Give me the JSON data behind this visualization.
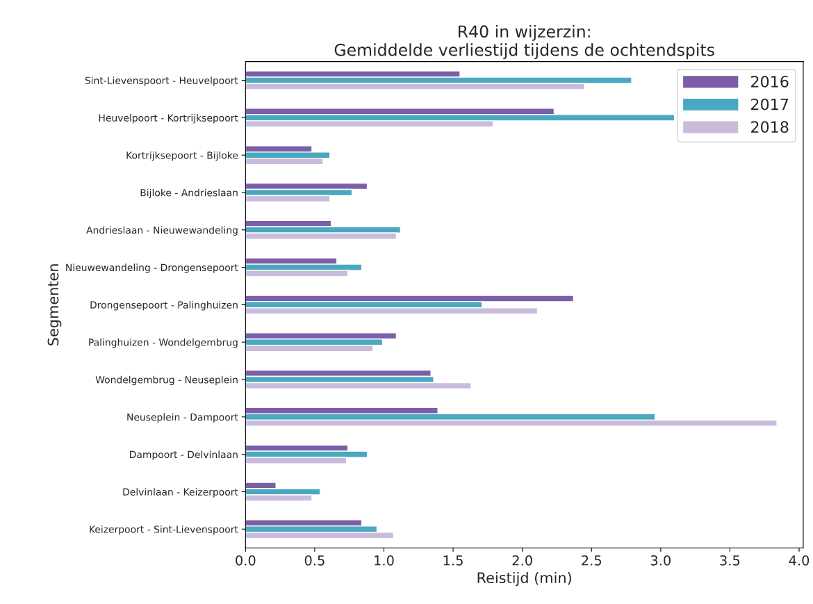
{
  "chart_data": {
    "type": "bar",
    "orientation": "horizontal",
    "title": "R40 in wijzerzin:\nGemiddelde verliestijd tijdens de ochtendspits",
    "xlabel": "Reistijd (min)",
    "ylabel": "Segmenten",
    "categories": [
      "Sint-Lievenspoort - Heuvelpoort",
      "Heuvelpoort - Kortrijksepoort",
      "Kortrijksepoort - Bijloke",
      "Bijloke - Andrieslaan",
      "Andrieslaan - Nieuwewandeling",
      "Nieuwewandeling - Drongensepoort",
      "Drongensepoort - Palinghuizen",
      "Palinghuizen - Wondelgembrug",
      "Wondelgembrug - Neuseplein",
      "Neuseplein - Dampoort",
      "Dampoort - Delvinlaan",
      "Delvinlaan - Keizerpoort",
      "Keizerpoort - Sint-Lievenspoort"
    ],
    "series": [
      {
        "name": "2016",
        "color": "#7b5ea7",
        "values": [
          1.55,
          2.23,
          0.48,
          0.88,
          0.62,
          0.66,
          2.37,
          1.09,
          1.34,
          1.39,
          0.74,
          0.22,
          0.84
        ]
      },
      {
        "name": "2017",
        "color": "#4aa8c0",
        "values": [
          2.79,
          3.1,
          0.61,
          0.77,
          1.12,
          0.84,
          1.71,
          0.99,
          1.36,
          2.96,
          0.88,
          0.54,
          0.95
        ]
      },
      {
        "name": "2018",
        "color": "#c9bcdb",
        "values": [
          2.45,
          1.79,
          0.56,
          0.61,
          1.09,
          0.74,
          2.11,
          0.92,
          1.63,
          3.84,
          0.73,
          0.48,
          1.07
        ]
      }
    ],
    "xlim": [
      0,
      4.03
    ],
    "xticks": [
      {
        "value": 0,
        "label": "0.0"
      },
      {
        "value": 0.5,
        "label": "0.5"
      },
      {
        "value": 1,
        "label": "1.0"
      },
      {
        "value": 1.5,
        "label": "1.5"
      },
      {
        "value": 2,
        "label": "2.0"
      },
      {
        "value": 2.5,
        "label": "2.5"
      },
      {
        "value": 3,
        "label": "3.0"
      },
      {
        "value": 3.5,
        "label": "3.5"
      },
      {
        "value": 4,
        "label": "4.0"
      }
    ],
    "grid": false,
    "legend": "top right"
  }
}
